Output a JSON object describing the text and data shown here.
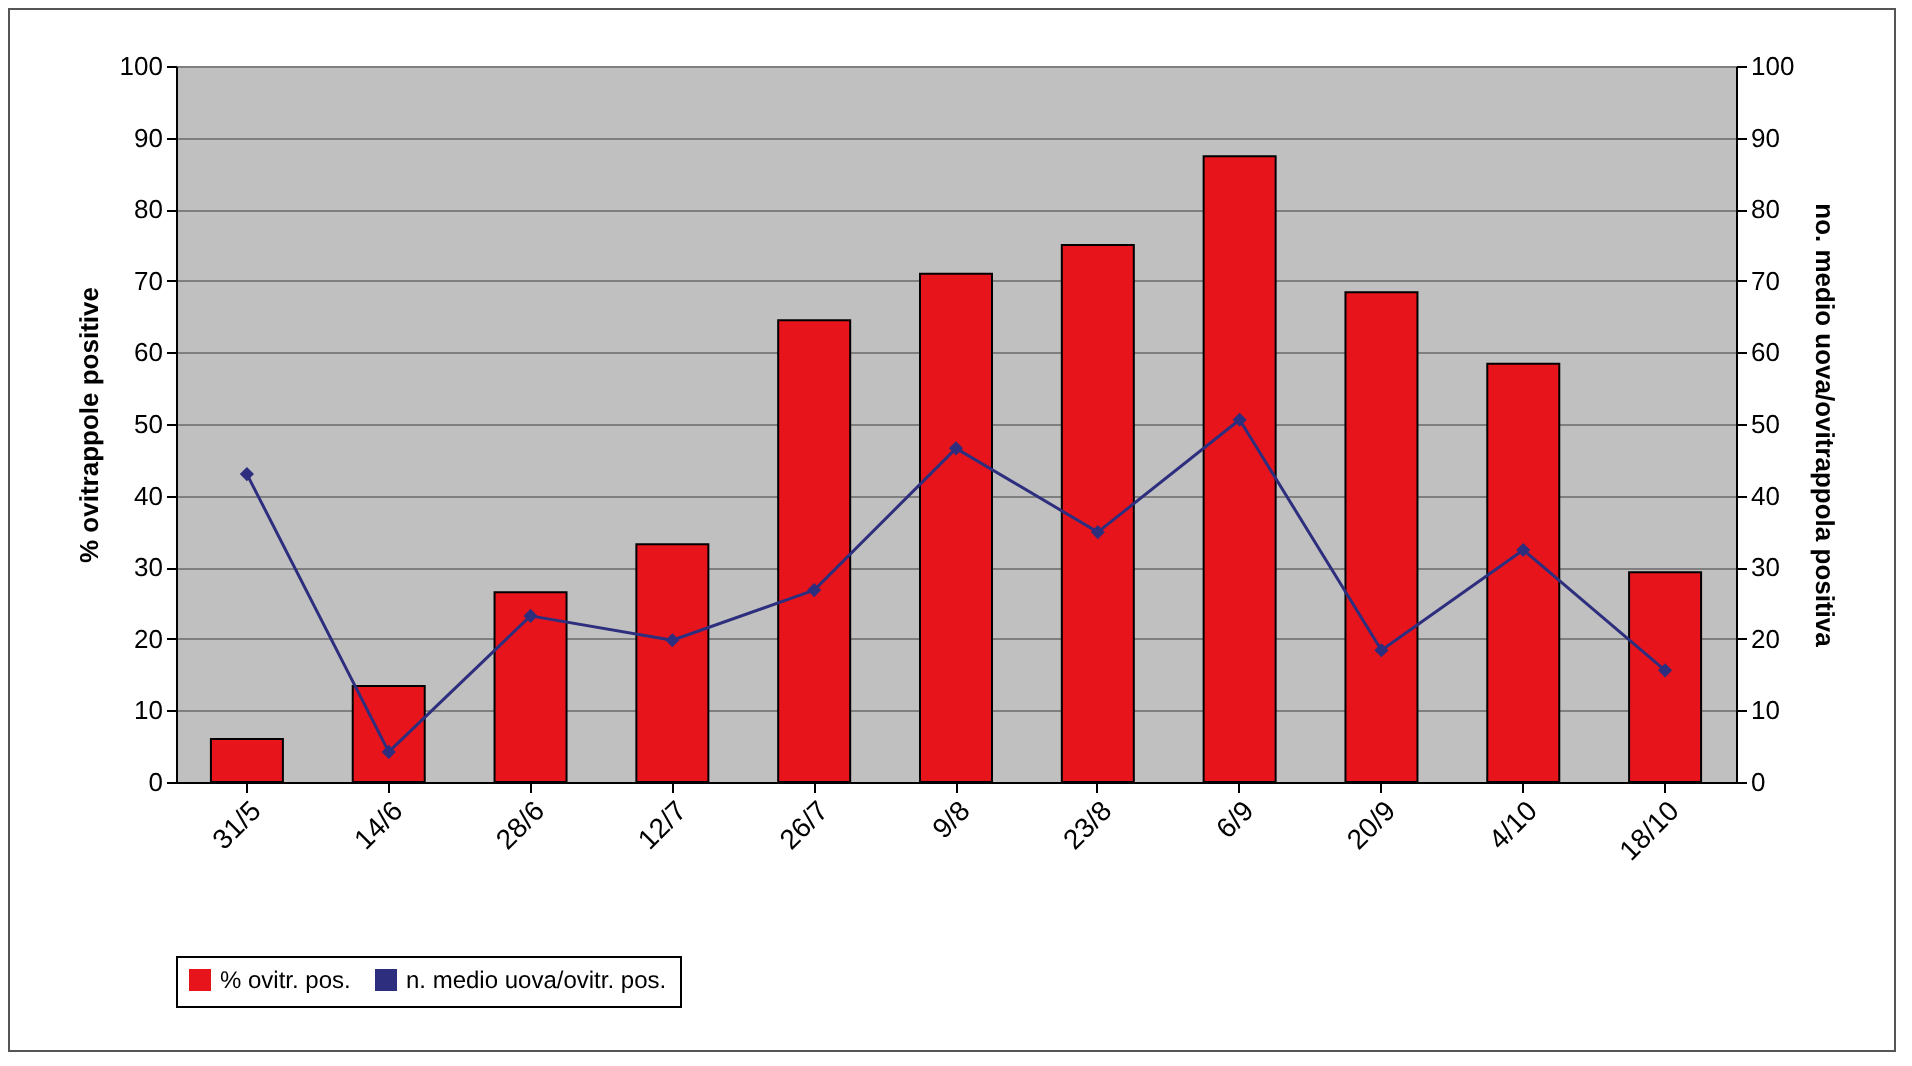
{
  "chart_data": {
    "type": "bar",
    "ylabel": "% ovitrappole positive",
    "y2label": "no. medio uova/ovitrappola positiva",
    "categories": [
      "31/5",
      "14/6",
      "28/6",
      "12/7",
      "26/7",
      "9/8",
      "23/8",
      "6/9",
      "20/9",
      "4/10",
      "18/10"
    ],
    "series": [
      {
        "name": "% ovitr. pos.",
        "color": "#e8141c",
        "values": [
          6,
          13.4,
          26.5,
          33.2,
          64.5,
          71,
          75,
          87.4,
          68.4,
          58.4,
          29.3
        ]
      },
      {
        "name": "n. medio uova/ovitr. pos.",
        "type": "line",
        "axis": "y2",
        "color": "#2e2e7e",
        "marker": "diamond",
        "values": [
          43,
          4.2,
          23.2,
          19.8,
          26.8,
          46.6,
          34.9,
          50.6,
          18.4,
          32.4,
          15.6
        ]
      }
    ],
    "ylim": [
      0,
      100
    ],
    "yticks": [
      0,
      10,
      20,
      30,
      40,
      50,
      60,
      70,
      80,
      90,
      100
    ],
    "y2lim": [
      0,
      100
    ],
    "y2ticks": [
      0,
      10,
      20,
      30,
      40,
      50,
      60,
      70,
      80,
      90,
      100
    ],
    "grid": "y",
    "legend": "bottom"
  }
}
